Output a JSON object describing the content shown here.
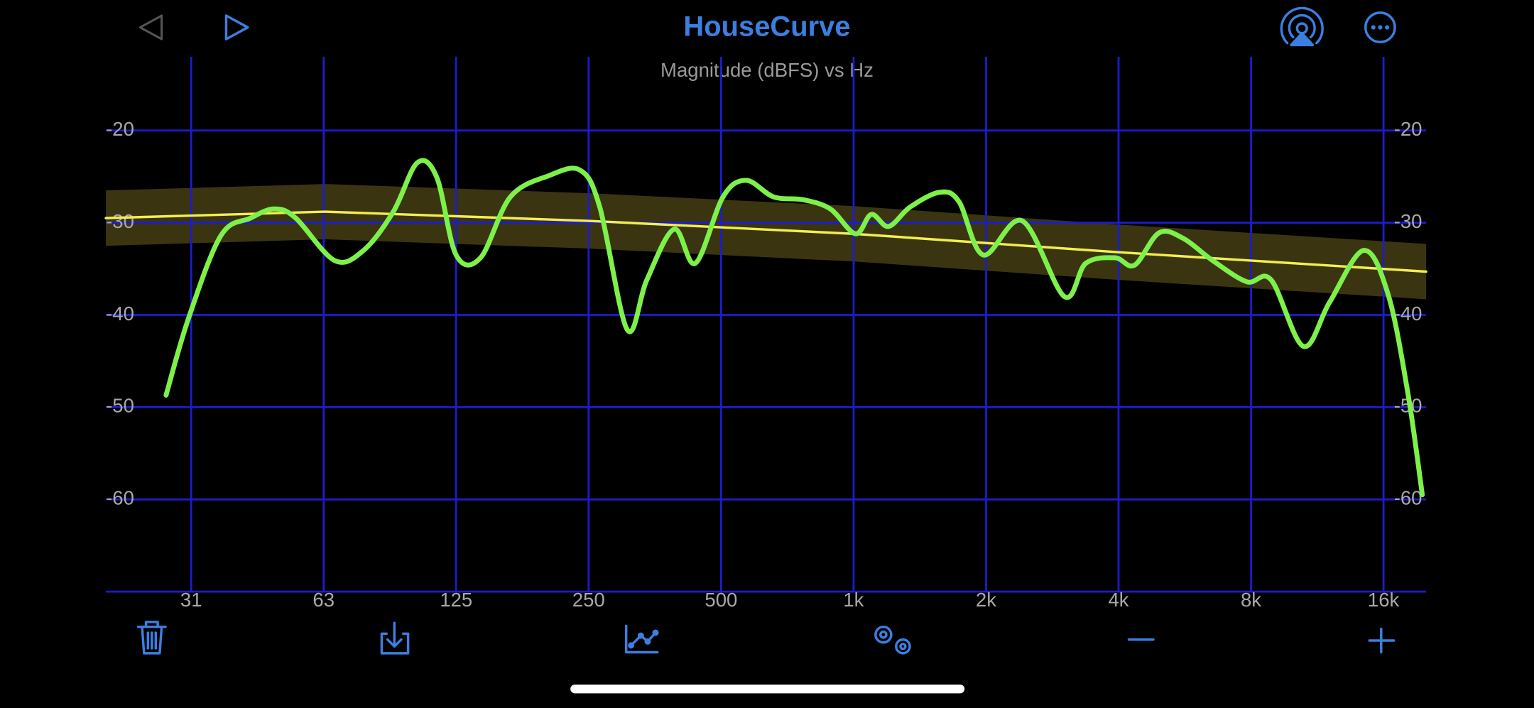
{
  "app": {
    "title": "HouseCurve"
  },
  "chart_data": {
    "type": "line",
    "title": "Magnitude (dBFS) vs Hz",
    "xscale": "log",
    "xlim": [
      20,
      20000
    ],
    "xticks": [
      {
        "value": 31.25,
        "label": "31"
      },
      {
        "value": 62.5,
        "label": "63"
      },
      125,
      250,
      500,
      {
        "value": 1000,
        "label": "1k"
      },
      {
        "value": 2000,
        "label": "2k"
      },
      {
        "value": 4000,
        "label": "4k"
      },
      {
        "value": 8000,
        "label": "8k"
      },
      {
        "value": 16000,
        "label": "16k"
      }
    ],
    "ylim": [
      -70,
      -12
    ],
    "yticks": [
      -20,
      -30,
      -40,
      -50,
      -60
    ],
    "grid": true,
    "grid_color": "#1c1ccf",
    "series": [
      {
        "color": "#7ef04a",
        "x": [
          27.4,
          30.8,
          36.5,
          42.6,
          48.3,
          54,
          66.2,
          77,
          90,
          102,
          113,
          125,
          142,
          166,
          203,
          239,
          265,
          306,
          339,
          391,
          437,
          505,
          570,
          658,
          767,
          885,
          1010,
          1097,
          1201,
          1344,
          1567,
          1735,
          1971,
          2418,
          3012,
          3369,
          3926,
          4350,
          4943,
          5613,
          6544,
          7825,
          8888,
          10519,
          12075,
          14431,
          16397,
          18165,
          19603
        ],
        "values": [
          -48.7,
          -40.4,
          -31.4,
          -29.5,
          -28.5,
          -29.5,
          -34.1,
          -33,
          -28.8,
          -23.5,
          -25.1,
          -33.5,
          -33.8,
          -27.2,
          -24.9,
          -24.3,
          -28.3,
          -41.6,
          -36.2,
          -30.7,
          -34.4,
          -27.2,
          -25.4,
          -27.2,
          -27.5,
          -28.5,
          -31.2,
          -29.1,
          -30.4,
          -28.3,
          -26.7,
          -27.7,
          -33.5,
          -29.8,
          -38,
          -34.4,
          -33.8,
          -34.6,
          -31.1,
          -31.7,
          -34.1,
          -36.4,
          -36.2,
          -43.4,
          -38.6,
          -33,
          -37.8,
          -48.4,
          -59.5
        ]
      },
      {
        "color": "#f2ef4e",
        "band": 3,
        "band_color": "#3a3510",
        "x": [
          20,
          63,
          250,
          1000,
          4000,
          20000
        ],
        "values": [
          -29.5,
          -28.8,
          -29.8,
          -31.2,
          -33.2,
          -35.3
        ]
      }
    ]
  }
}
